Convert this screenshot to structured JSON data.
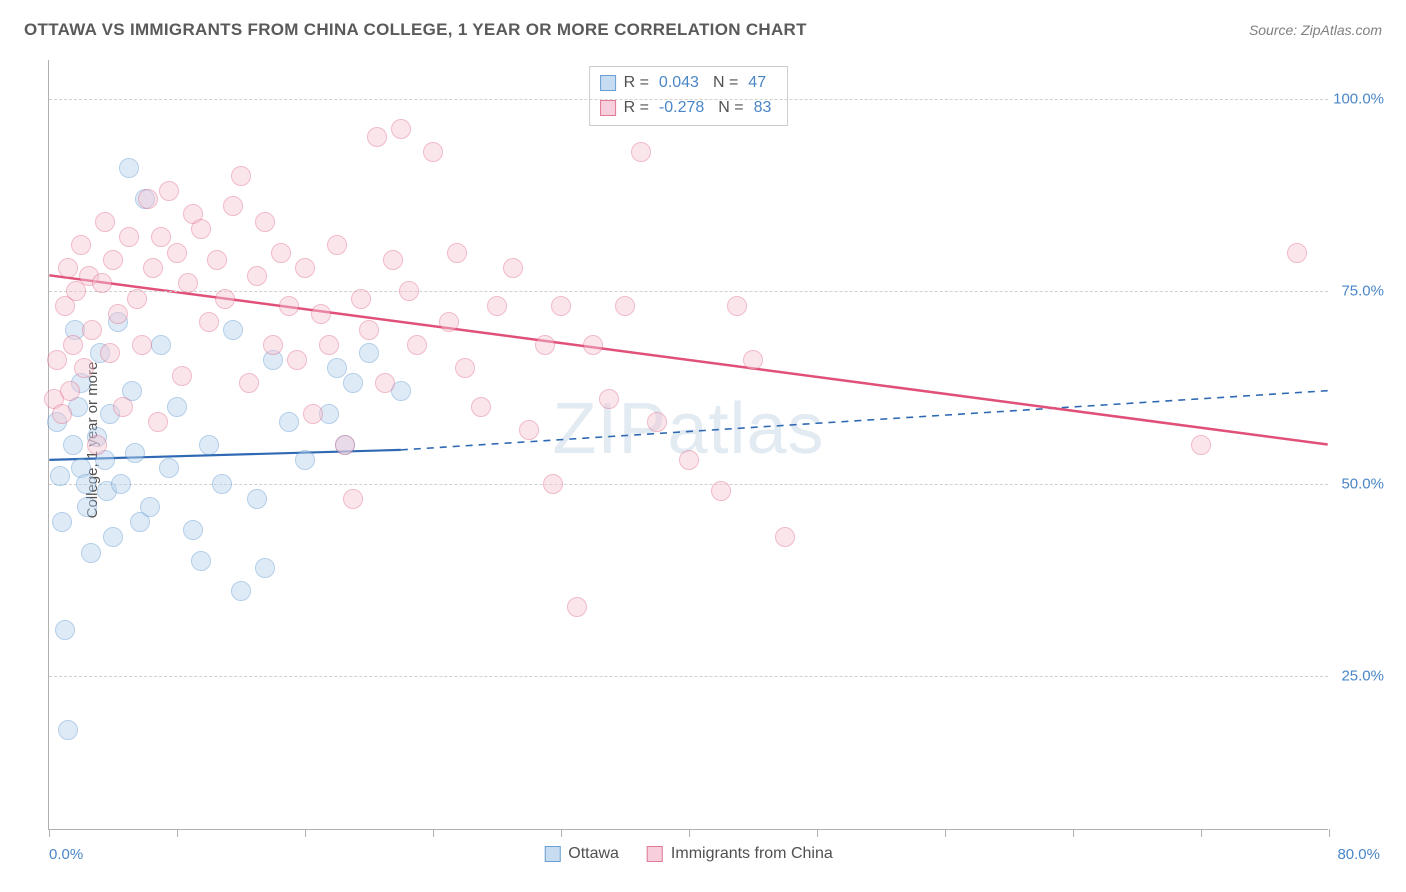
{
  "header": {
    "title": "OTTAWA VS IMMIGRANTS FROM CHINA COLLEGE, 1 YEAR OR MORE CORRELATION CHART",
    "source": "Source: ZipAtlas.com"
  },
  "chart": {
    "type": "scatter",
    "ylabel": "College, 1 year or more",
    "watermark": "ZIPatlas",
    "background_color": "#ffffff",
    "grid_color": "#d0d0d0",
    "axis_color": "#b0b0b0",
    "tick_label_color": "#4a86c7",
    "marker_radius": 10,
    "marker_opacity": 0.45,
    "xlim": [
      0,
      80
    ],
    "ylim": [
      5,
      105
    ],
    "xticks": [
      0,
      8,
      16,
      24,
      32,
      40,
      48,
      56,
      64,
      72,
      80
    ],
    "xtick_labels": {
      "0": "0.0%",
      "80": "80.0%"
    },
    "yticks": [
      25,
      50,
      75,
      100
    ],
    "ytick_labels": {
      "25": "25.0%",
      "50": "50.0%",
      "75": "75.0%",
      "100": "100.0%"
    },
    "series": [
      {
        "name": "Ottawa",
        "label": "Ottawa",
        "fill": "#b7d3ed",
        "stroke": "#5b95cf",
        "swatch_fill": "#c7dcf0",
        "swatch_stroke": "#6aa0d4",
        "r_value": "0.043",
        "n_value": "47",
        "trend": {
          "x1": 0,
          "y1": 53,
          "x2_solid": 22,
          "y2_solid": 54.3,
          "x2": 80,
          "y2": 62,
          "stroke": "#2f69b3",
          "width": 2.2
        },
        "points": [
          [
            0.5,
            58
          ],
          [
            0.7,
            51
          ],
          [
            0.8,
            45
          ],
          [
            1,
            31
          ],
          [
            1.2,
            18
          ],
          [
            1.5,
            55
          ],
          [
            1.6,
            70
          ],
          [
            1.8,
            60
          ],
          [
            2,
            63
          ],
          [
            2,
            52
          ],
          [
            2.3,
            50
          ],
          [
            2.4,
            47
          ],
          [
            2.6,
            41
          ],
          [
            3,
            56
          ],
          [
            3.2,
            67
          ],
          [
            3.5,
            53
          ],
          [
            3.6,
            49
          ],
          [
            3.8,
            59
          ],
          [
            4,
            43
          ],
          [
            4.3,
            71
          ],
          [
            4.5,
            50
          ],
          [
            5,
            91
          ],
          [
            5.2,
            62
          ],
          [
            5.4,
            54
          ],
          [
            5.7,
            45
          ],
          [
            6,
            87
          ],
          [
            6.3,
            47
          ],
          [
            7,
            68
          ],
          [
            7.5,
            52
          ],
          [
            8,
            60
          ],
          [
            9,
            44
          ],
          [
            9.5,
            40
          ],
          [
            10,
            55
          ],
          [
            10.8,
            50
          ],
          [
            11.5,
            70
          ],
          [
            12,
            36
          ],
          [
            13,
            48
          ],
          [
            13.5,
            39
          ],
          [
            14,
            66
          ],
          [
            15,
            58
          ],
          [
            16,
            53
          ],
          [
            17.5,
            59
          ],
          [
            18,
            65
          ],
          [
            18.5,
            55
          ],
          [
            19,
            63
          ],
          [
            20,
            67
          ],
          [
            22,
            62
          ]
        ]
      },
      {
        "name": "Immigrants from China",
        "label": "Immigrants from China",
        "fill": "#f5c6d4",
        "stroke": "#e06988",
        "swatch_fill": "#f7cedb",
        "swatch_stroke": "#e27a96",
        "r_value": "-0.278",
        "n_value": "83",
        "trend": {
          "x1": 0,
          "y1": 77,
          "x2_solid": 80,
          "y2_solid": 55,
          "x2": 80,
          "y2": 55,
          "stroke": "#e05078",
          "width": 2.5
        },
        "points": [
          [
            0.3,
            61
          ],
          [
            0.5,
            66
          ],
          [
            0.8,
            59
          ],
          [
            1,
            73
          ],
          [
            1.2,
            78
          ],
          [
            1.5,
            68
          ],
          [
            1.7,
            75
          ],
          [
            2,
            81
          ],
          [
            2.2,
            65
          ],
          [
            2.5,
            77
          ],
          [
            2.7,
            70
          ],
          [
            3,
            55
          ],
          [
            3.3,
            76
          ],
          [
            3.5,
            84
          ],
          [
            4,
            79
          ],
          [
            4.3,
            72
          ],
          [
            4.6,
            60
          ],
          [
            5,
            82
          ],
          [
            5.5,
            74
          ],
          [
            5.8,
            68
          ],
          [
            6.2,
            87
          ],
          [
            6.5,
            78
          ],
          [
            7,
            82
          ],
          [
            7.5,
            88
          ],
          [
            8,
            80
          ],
          [
            8.3,
            64
          ],
          [
            8.7,
            76
          ],
          [
            9,
            85
          ],
          [
            9.5,
            83
          ],
          [
            10,
            71
          ],
          [
            10.5,
            79
          ],
          [
            11,
            74
          ],
          [
            11.5,
            86
          ],
          [
            12,
            90
          ],
          [
            12.5,
            63
          ],
          [
            13,
            77
          ],
          [
            13.5,
            84
          ],
          [
            14,
            68
          ],
          [
            14.5,
            80
          ],
          [
            15,
            73
          ],
          [
            15.5,
            66
          ],
          [
            16,
            78
          ],
          [
            16.5,
            59
          ],
          [
            17,
            72
          ],
          [
            17.5,
            68
          ],
          [
            18,
            81
          ],
          [
            18.5,
            55
          ],
          [
            19,
            48
          ],
          [
            19.5,
            74
          ],
          [
            20,
            70
          ],
          [
            20.5,
            95
          ],
          [
            21,
            63
          ],
          [
            21.5,
            79
          ],
          [
            22,
            96
          ],
          [
            22.5,
            75
          ],
          [
            23,
            68
          ],
          [
            24,
            93
          ],
          [
            25,
            71
          ],
          [
            25.5,
            80
          ],
          [
            26,
            65
          ],
          [
            27,
            60
          ],
          [
            28,
            73
          ],
          [
            29,
            78
          ],
          [
            30,
            57
          ],
          [
            31,
            68
          ],
          [
            31.5,
            50
          ],
          [
            32,
            73
          ],
          [
            33,
            34
          ],
          [
            34,
            68
          ],
          [
            35,
            61
          ],
          [
            36,
            73
          ],
          [
            37,
            93
          ],
          [
            38,
            58
          ],
          [
            40,
            53
          ],
          [
            42,
            49
          ],
          [
            43,
            73
          ],
          [
            44,
            66
          ],
          [
            46,
            43
          ],
          [
            72,
            55
          ],
          [
            78,
            80
          ],
          [
            1.3,
            62
          ],
          [
            3.8,
            67
          ],
          [
            6.8,
            58
          ]
        ]
      }
    ],
    "stats_labels": {
      "r_prefix": "R =",
      "n_prefix": "N ="
    }
  },
  "legend": {
    "series1": "Ottawa",
    "series2": "Immigrants from China"
  }
}
